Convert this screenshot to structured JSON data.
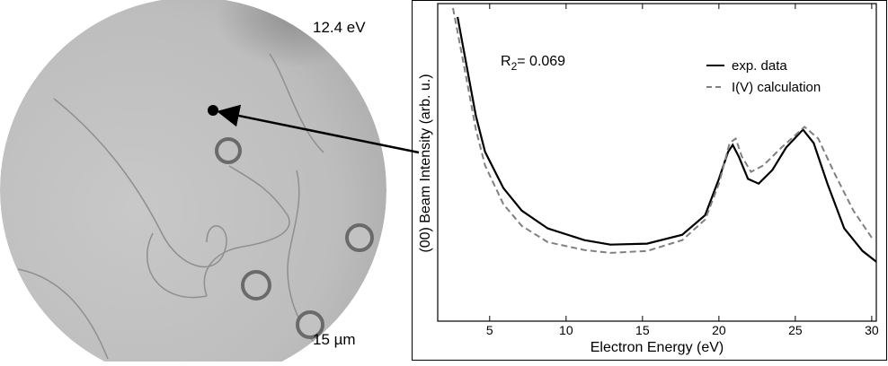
{
  "image": {
    "energy_label": "12.4 eV",
    "scale_label": "15 µm"
  },
  "chart_data": {
    "type": "line",
    "x_label": "Electron Energy (eV)",
    "y_label": "(00) Beam Intensity (arb. u.)",
    "annotation": {
      "text": "R",
      "subscript": "2",
      "rest": "= 0.069"
    },
    "xlim": [
      1.6,
      30.3
    ],
    "xticks": [
      5,
      10,
      15,
      20,
      25,
      30
    ],
    "ylim": [
      0,
      100
    ],
    "legend": "upper right",
    "series": [
      {
        "name": "exp. data",
        "color": "#000000",
        "dash": false,
        "x": [
          2.9,
          3.5,
          4.1,
          4.7,
          5.9,
          7.1,
          8.8,
          11.2,
          12.9,
          15.3,
          17.6,
          19.1,
          20.0,
          20.6,
          20.9,
          21.3,
          21.9,
          22.6,
          23.5,
          24.4,
          25.5,
          26.2,
          27.1,
          28.2,
          29.4,
          30.3
        ],
        "values": [
          95.8,
          80.2,
          64.6,
          53.3,
          41.9,
          34.8,
          29.2,
          25.5,
          24.1,
          24.4,
          27.2,
          33.4,
          44.8,
          53.3,
          55.5,
          51.8,
          44.8,
          43.3,
          47.6,
          54.7,
          60.3,
          56.1,
          43.3,
          29.2,
          22.1,
          18.7
        ]
      },
      {
        "name": "I(V) calculation",
        "color": "#808080",
        "dash": true,
        "x": [
          2.6,
          3.5,
          4.1,
          4.7,
          5.9,
          7.1,
          8.8,
          11.2,
          12.9,
          15.3,
          17.6,
          19.1,
          20.0,
          20.7,
          21.1,
          21.5,
          22.1,
          22.9,
          24.1,
          25.6,
          26.5,
          27.6,
          28.8,
          30.0
        ],
        "values": [
          98.6,
          75.9,
          60.3,
          49.0,
          36.8,
          30.0,
          24.9,
          22.4,
          21.5,
          22.1,
          25.5,
          32.0,
          43.3,
          56.1,
          57.5,
          51.8,
          47.0,
          49.0,
          54.7,
          61.2,
          57.5,
          46.2,
          34.8,
          26.3
        ]
      }
    ]
  }
}
